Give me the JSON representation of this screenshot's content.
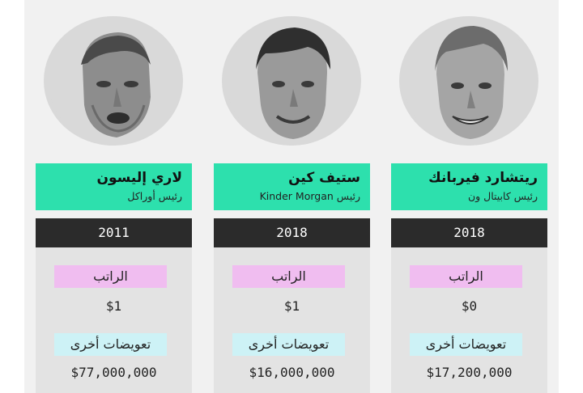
{
  "cards": [
    {
      "name": "لاري إليسون",
      "role": "رئيس أوراكل",
      "year": "2011",
      "salary_label": "الراتب",
      "salary_value": "$1",
      "other_label": "تعويضات أخرى",
      "other_value": "$77,000,000"
    },
    {
      "name": "ستيف كين",
      "role": "رئيس Kinder Morgan",
      "year": "2018",
      "salary_label": "الراتب",
      "salary_value": "$1",
      "other_label": "تعويضات أخرى",
      "other_value": "$16,000,000"
    },
    {
      "name": "ريتشارد فيربانك",
      "role": "رئيس كابيتال ون",
      "year": "2018",
      "salary_label": "الراتب",
      "salary_value": "$0",
      "other_label": "تعويضات أخرى",
      "other_value": "$17,200,000"
    }
  ],
  "colors": {
    "name_bg": "#2de0ad",
    "year_bg": "#2b2b2b",
    "salary_label_bg": "#f0bdf0",
    "other_label_bg": "#cdf2f6",
    "panel_bg": "#f1f1f1",
    "card_body_bg": "#e3e3e3"
  }
}
